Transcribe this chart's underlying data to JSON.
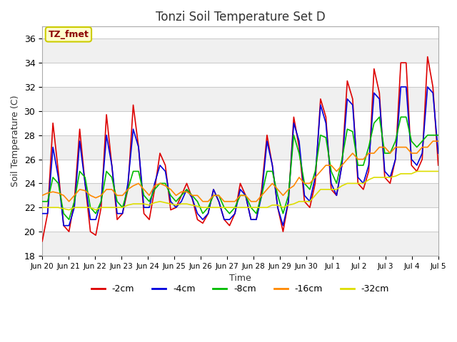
{
  "title": "Tonzi Soil Temperature Set D",
  "xlabel": "Time",
  "ylabel": "Soil Temperature (C)",
  "ylim": [
    18,
    37
  ],
  "background_color": "#ffffff",
  "plot_bg_color": "#ffffff",
  "annotation_text": "TZ_fmet",
  "annotation_color": "#8b0000",
  "annotation_bg": "#ffffcc",
  "annotation_border": "#cccc00",
  "tick_labels": [
    "Jun 20",
    "Jun 21",
    "Jun 22",
    "Jun 23",
    "Jun 24",
    "Jun 25",
    "Jun 26",
    "Jun 27",
    "Jun 28",
    "Jun 29",
    "Jun 30",
    "Jul 1",
    "Jul 2",
    "Jul 3",
    "Jul 4",
    "Jul 5"
  ],
  "yticks": [
    18,
    20,
    22,
    24,
    26,
    28,
    30,
    32,
    34,
    36
  ],
  "colors": {
    "-2cm": "#dd0000",
    "-4cm": "#0000dd",
    "-8cm": "#00bb00",
    "-16cm": "#ff8800",
    "-32cm": "#dddd00"
  },
  "legend_labels": [
    "-2cm",
    "-4cm",
    "-8cm",
    "-16cm",
    "-32cm"
  ],
  "n_days": 15,
  "pts_per_day": 5,
  "series": {
    "-2cm": [
      19.2,
      21.5,
      29.0,
      25.0,
      20.5,
      20.0,
      22.5,
      28.5,
      24.0,
      20.0,
      19.7,
      22.0,
      29.7,
      25.5,
      21.0,
      21.5,
      23.5,
      30.5,
      27.0,
      21.5,
      21.0,
      23.5,
      26.5,
      25.5,
      21.8,
      22.0,
      23.0,
      24.0,
      22.8,
      21.0,
      20.7,
      21.5,
      23.5,
      22.5,
      21.0,
      20.5,
      21.5,
      24.0,
      23.0,
      21.0,
      21.0,
      23.5,
      28.0,
      25.5,
      22.0,
      20.0,
      22.5,
      29.5,
      27.0,
      22.5,
      22.0,
      24.0,
      31.0,
      29.5,
      23.5,
      23.0,
      25.5,
      32.5,
      31.0,
      24.0,
      23.5,
      25.0,
      33.5,
      31.5,
      24.5,
      24.0,
      26.0,
      34.0,
      34.0,
      25.5,
      25.0,
      26.0,
      34.5,
      32.0,
      25.5
    ],
    "-4cm": [
      21.5,
      21.5,
      27.0,
      24.5,
      20.5,
      20.5,
      22.0,
      27.5,
      24.0,
      21.0,
      21.0,
      22.5,
      28.0,
      25.5,
      21.5,
      21.5,
      24.0,
      28.5,
      27.0,
      22.0,
      22.0,
      24.0,
      25.5,
      25.0,
      22.5,
      22.0,
      22.5,
      23.5,
      22.8,
      21.5,
      21.0,
      21.5,
      23.5,
      22.5,
      21.0,
      21.0,
      21.5,
      23.5,
      23.0,
      21.0,
      21.0,
      23.0,
      27.5,
      25.5,
      22.0,
      20.5,
      22.5,
      29.0,
      27.5,
      23.0,
      22.5,
      24.5,
      30.5,
      29.0,
      24.0,
      23.0,
      25.5,
      31.0,
      30.5,
      24.5,
      24.0,
      25.5,
      31.5,
      31.0,
      25.0,
      24.5,
      26.0,
      32.0,
      32.0,
      26.0,
      25.5,
      26.5,
      32.0,
      31.5,
      26.5
    ],
    "-8cm": [
      22.5,
      22.5,
      24.5,
      24.0,
      21.5,
      21.0,
      22.5,
      25.0,
      24.5,
      22.0,
      21.5,
      22.5,
      25.0,
      24.5,
      22.5,
      22.0,
      23.5,
      25.0,
      25.0,
      23.0,
      22.5,
      23.5,
      24.0,
      24.0,
      23.0,
      22.5,
      23.0,
      23.5,
      23.0,
      22.5,
      21.5,
      22.0,
      23.0,
      23.0,
      22.0,
      21.5,
      22.0,
      23.0,
      23.0,
      22.0,
      21.5,
      23.0,
      25.0,
      25.0,
      23.0,
      21.5,
      23.0,
      28.0,
      26.5,
      24.0,
      23.5,
      25.0,
      28.0,
      27.8,
      25.0,
      24.0,
      26.0,
      28.5,
      28.3,
      25.5,
      25.5,
      27.0,
      29.0,
      29.5,
      26.5,
      26.5,
      27.5,
      29.5,
      29.5,
      27.5,
      27.0,
      27.5,
      28.0,
      28.0,
      28.0
    ],
    "-16cm": [
      23.0,
      23.2,
      23.3,
      23.2,
      23.0,
      22.5,
      23.0,
      23.5,
      23.4,
      23.0,
      22.8,
      23.0,
      23.5,
      23.5,
      23.0,
      23.0,
      23.5,
      23.8,
      24.0,
      23.5,
      23.0,
      23.8,
      24.0,
      23.8,
      23.5,
      23.0,
      23.3,
      23.3,
      23.0,
      23.0,
      22.5,
      22.5,
      23.0,
      23.0,
      22.5,
      22.5,
      22.5,
      23.0,
      23.0,
      22.5,
      22.5,
      23.0,
      23.5,
      24.0,
      23.5,
      23.0,
      23.5,
      23.8,
      24.5,
      24.0,
      24.0,
      24.5,
      25.0,
      25.5,
      25.5,
      25.0,
      25.5,
      26.0,
      26.5,
      26.0,
      26.0,
      26.5,
      26.5,
      27.0,
      27.0,
      26.5,
      27.0,
      27.0,
      27.0,
      26.5,
      26.5,
      27.0,
      27.0,
      27.5,
      27.5
    ],
    "-32cm": [
      22.0,
      22.0,
      22.0,
      22.0,
      21.9,
      21.8,
      22.0,
      22.0,
      22.0,
      22.0,
      21.8,
      22.0,
      22.0,
      22.0,
      22.0,
      22.0,
      22.2,
      22.3,
      22.3,
      22.3,
      22.2,
      22.4,
      22.5,
      22.4,
      22.3,
      22.2,
      22.3,
      22.3,
      22.2,
      22.1,
      22.0,
      22.0,
      22.0,
      22.0,
      22.0,
      22.0,
      22.0,
      22.0,
      22.0,
      22.0,
      22.0,
      22.0,
      22.0,
      22.2,
      22.2,
      22.0,
      22.2,
      22.3,
      22.5,
      22.5,
      22.5,
      23.0,
      23.5,
      23.5,
      23.5,
      23.5,
      23.8,
      24.0,
      24.0,
      24.0,
      24.0,
      24.3,
      24.5,
      24.5,
      24.5,
      24.5,
      24.6,
      24.8,
      24.8,
      24.8,
      25.0,
      25.0,
      25.0,
      25.0,
      25.0
    ]
  }
}
